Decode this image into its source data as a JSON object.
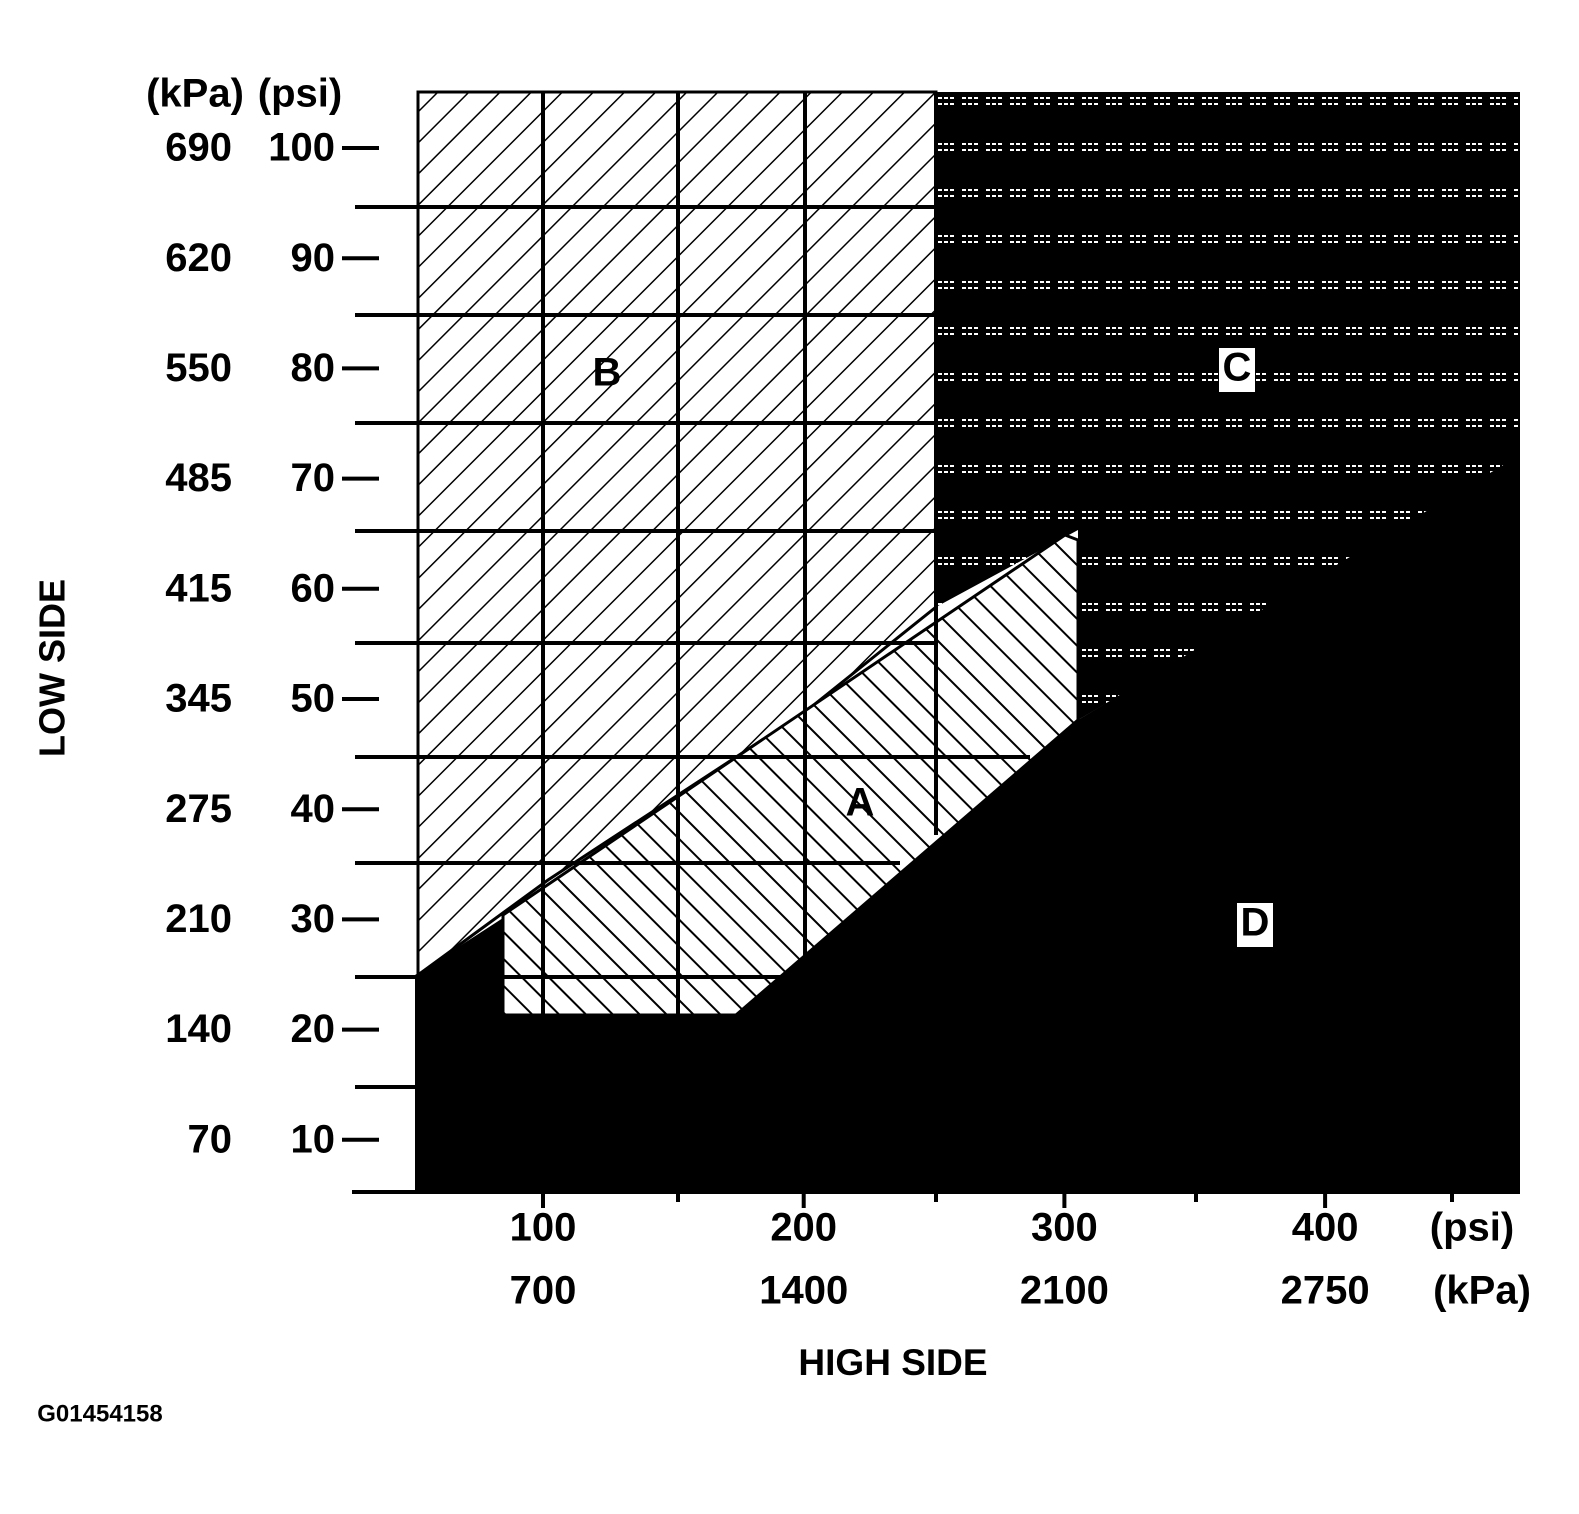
{
  "y_axis": {
    "title": "LOW SIDE",
    "kpa_unit": "(kPa)",
    "psi_unit": "(psi)",
    "ticks": [
      {
        "kpa": 690,
        "psi": 100
      },
      {
        "kpa": 620,
        "psi": 90
      },
      {
        "kpa": 550,
        "psi": 80
      },
      {
        "kpa": 485,
        "psi": 70
      },
      {
        "kpa": 415,
        "psi": 60
      },
      {
        "kpa": 345,
        "psi": 50
      },
      {
        "kpa": 275,
        "psi": 40
      },
      {
        "kpa": 210,
        "psi": 30
      },
      {
        "kpa": 140,
        "psi": 20
      },
      {
        "kpa": 70,
        "psi": 10
      }
    ]
  },
  "x_axis": {
    "title": "HIGH SIDE",
    "psi_unit": "(psi)",
    "kpa_unit": "(kPa)",
    "ticks": [
      {
        "psi": 100,
        "kpa": 700
      },
      {
        "psi": 200,
        "kpa": 1400
      },
      {
        "psi": 300,
        "kpa": 2100
      },
      {
        "psi": 400,
        "kpa": 2750
      }
    ]
  },
  "regions": [
    "A",
    "B",
    "C",
    "D"
  ],
  "figure_id": "G01454158"
}
